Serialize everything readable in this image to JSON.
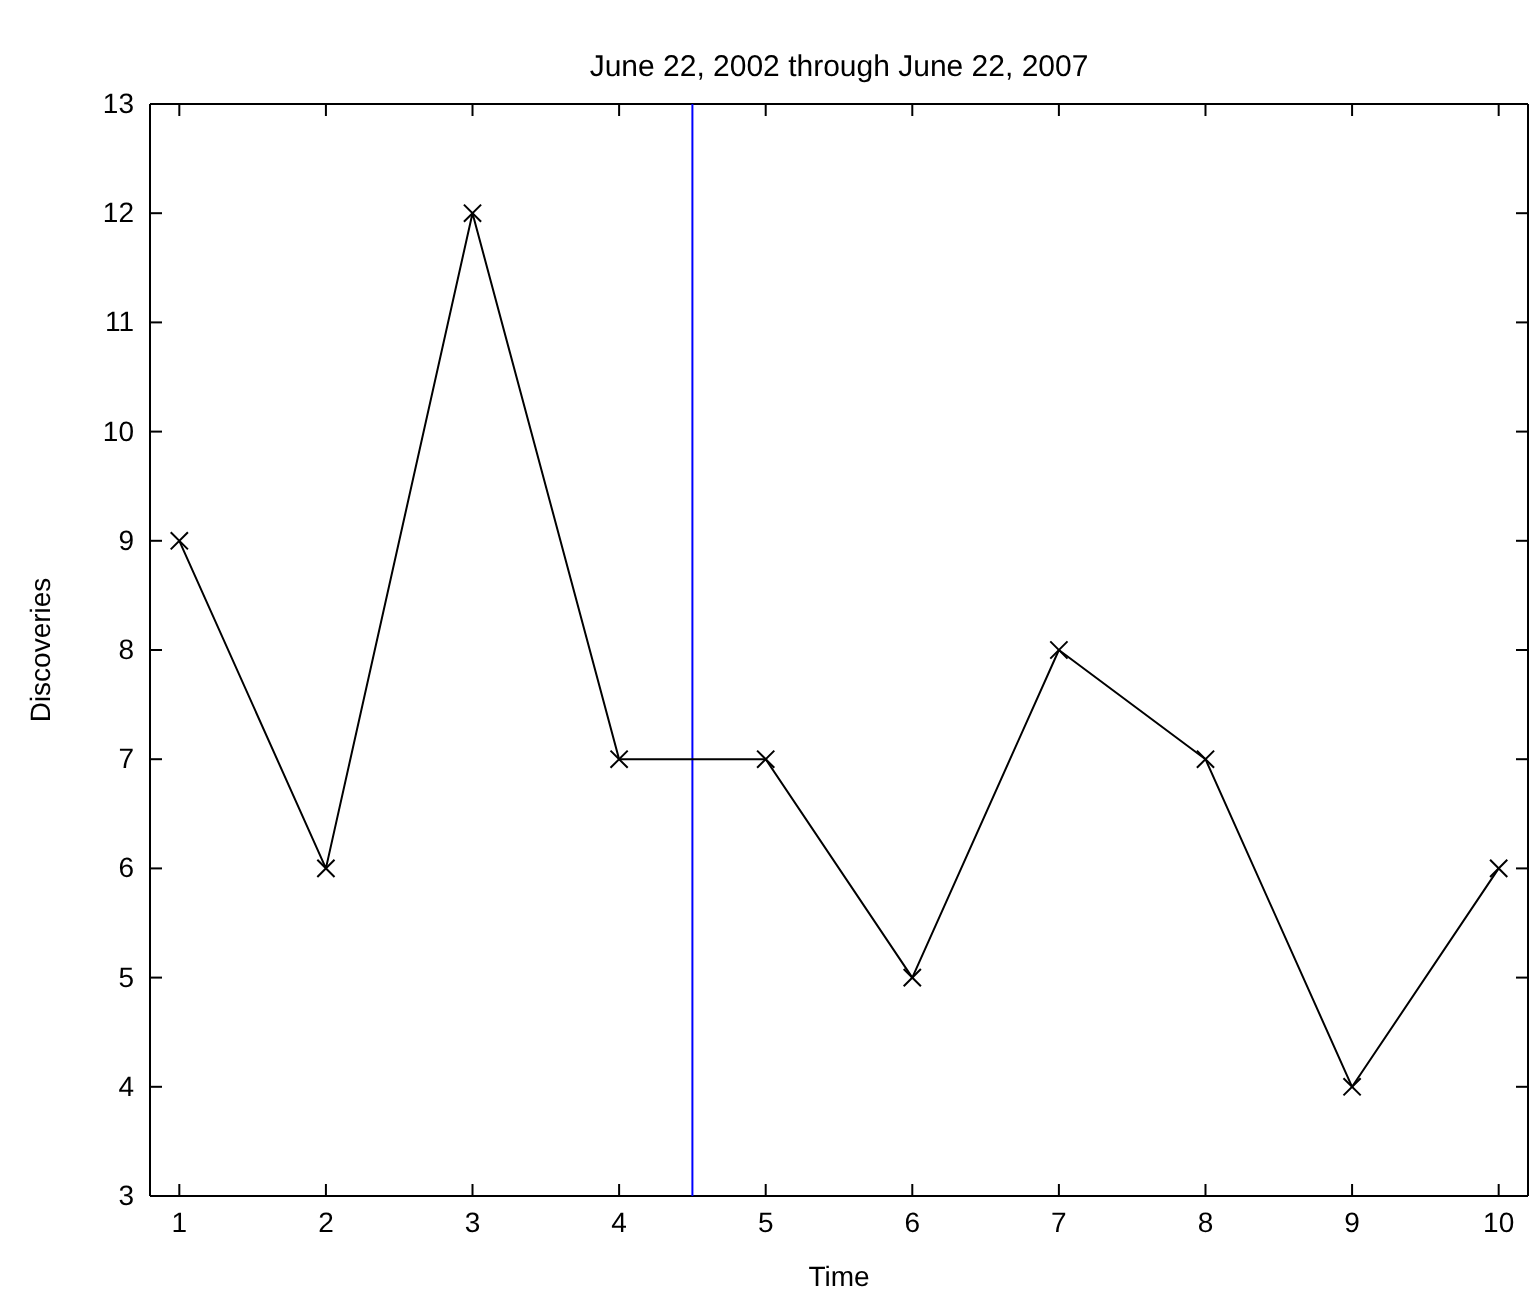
{
  "chart_data": {
    "type": "line",
    "title": "June 22, 2002 through June 22, 2007",
    "xlabel": "Time",
    "ylabel": "Discoveries",
    "x": [
      1,
      2,
      3,
      4,
      5,
      6,
      7,
      8,
      9,
      10
    ],
    "series": [
      {
        "color": "#000000",
        "values": [
          9,
          6,
          12,
          7,
          7,
          5,
          8,
          7,
          4,
          6
        ]
      }
    ],
    "xlim": [
      0.8,
      10.2
    ],
    "xticks": [
      1,
      2,
      3,
      4,
      5,
      6,
      7,
      8,
      9,
      10
    ],
    "ylim": [
      3,
      13
    ],
    "yticks": [
      3,
      4,
      5,
      6,
      7,
      8,
      9,
      10,
      11,
      12,
      13
    ],
    "ref_lines": [
      {
        "axis": "x",
        "value": 4.5,
        "color": "#0000ff"
      }
    ],
    "grid": false,
    "marker": "cross",
    "line_style": "solid"
  }
}
